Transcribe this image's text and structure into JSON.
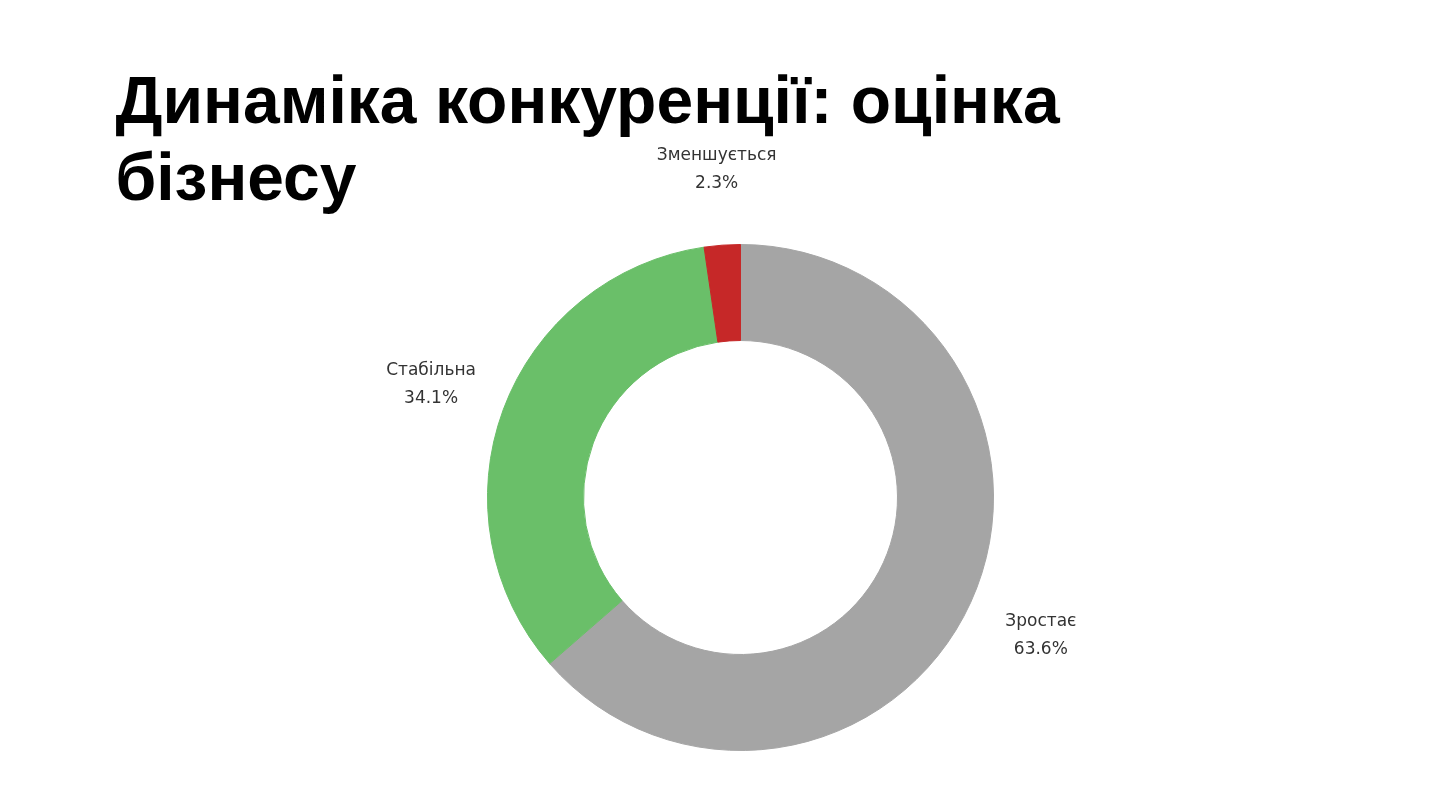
{
  "chart_data": {
    "type": "donut",
    "title": "Динаміка конкуренції: оцінка бізнесу",
    "categories": [
      "Зростає",
      "Стабільна",
      "Зменшується"
    ],
    "values": [
      63.6,
      34.1,
      2.3
    ],
    "colors": [
      "#a5a5a5",
      "#6abf69",
      "#c62828"
    ],
    "value_labels": [
      "63.6%",
      "34.1%",
      "2.3%"
    ]
  }
}
